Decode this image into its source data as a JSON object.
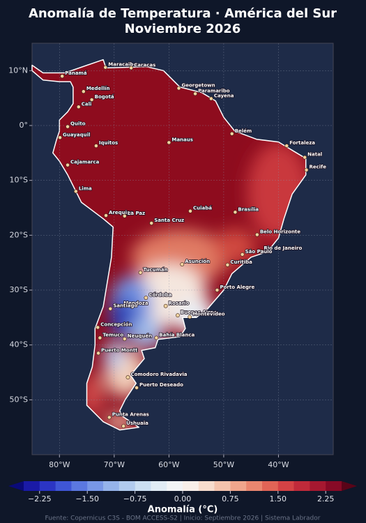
{
  "title_lines": [
    "Anomalía de Temperatura · América del Sur",
    "Noviembre 2026"
  ],
  "map": {
    "xlim": [
      -85,
      -30
    ],
    "ylim": [
      -60,
      15
    ],
    "xticks": [
      {
        "value": -80,
        "label": "80°W"
      },
      {
        "value": -70,
        "label": "70°W"
      },
      {
        "value": -60,
        "label": "60°W"
      },
      {
        "value": -50,
        "label": "50°W"
      },
      {
        "value": -40,
        "label": "40°W"
      }
    ],
    "yticks": [
      {
        "value": 10,
        "label": "10°N"
      },
      {
        "value": 0,
        "label": "0°"
      },
      {
        "value": -10,
        "label": "10°S"
      },
      {
        "value": -20,
        "label": "20°S"
      },
      {
        "value": -30,
        "label": "30°S"
      },
      {
        "value": -40,
        "label": "40°S"
      },
      {
        "value": -50,
        "label": "50°S"
      }
    ],
    "grid": true,
    "cities": [
      {
        "name": "Panamá",
        "lon": -79.5,
        "lat": 9
      },
      {
        "name": "Maracaibo",
        "lon": -71.6,
        "lat": 10.6
      },
      {
        "name": "Caracas",
        "lon": -66.9,
        "lat": 10.5
      },
      {
        "name": "Medellín",
        "lon": -75.6,
        "lat": 6.2
      },
      {
        "name": "Bogotá",
        "lon": -74.1,
        "lat": 4.7
      },
      {
        "name": "Cali",
        "lon": -76.5,
        "lat": 3.4
      },
      {
        "name": "Georgetown",
        "lon": -58.2,
        "lat": 6.8
      },
      {
        "name": "Paramaribo",
        "lon": -55.2,
        "lat": 5.8
      },
      {
        "name": "Cayena",
        "lon": -52.3,
        "lat": 4.9
      },
      {
        "name": "Quito",
        "lon": -78.5,
        "lat": -0.2
      },
      {
        "name": "Guayaquil",
        "lon": -79.9,
        "lat": -2.2
      },
      {
        "name": "Iquitos",
        "lon": -73.3,
        "lat": -3.7
      },
      {
        "name": "Manaus",
        "lon": -60,
        "lat": -3.1
      },
      {
        "name": "Belém",
        "lon": -48.5,
        "lat": -1.5
      },
      {
        "name": "Fortaleza",
        "lon": -38.5,
        "lat": -3.7
      },
      {
        "name": "Natal",
        "lon": -35.2,
        "lat": -5.8
      },
      {
        "name": "Recife",
        "lon": -34.9,
        "lat": -8.1
      },
      {
        "name": "Cajamarca",
        "lon": -78.5,
        "lat": -7.2
      },
      {
        "name": "Lima",
        "lon": -77,
        "lat": -12
      },
      {
        "name": "Cuiabá",
        "lon": -56.1,
        "lat": -15.6
      },
      {
        "name": "Brasília",
        "lon": -47.9,
        "lat": -15.8
      },
      {
        "name": "Arequipa",
        "lon": -71.5,
        "lat": -16.4
      },
      {
        "name": "La Paz",
        "lon": -68.1,
        "lat": -16.5
      },
      {
        "name": "Santa Cruz",
        "lon": -63.2,
        "lat": -17.8
      },
      {
        "name": "Belo Horizonte",
        "lon": -43.9,
        "lat": -19.9
      },
      {
        "name": "Rio de Janeiro",
        "lon": -43.2,
        "lat": -22.9
      },
      {
        "name": "São Paulo",
        "lon": -46.6,
        "lat": -23.5
      },
      {
        "name": "Curitiba",
        "lon": -49.3,
        "lat": -25.4
      },
      {
        "name": "Asunción",
        "lon": -57.6,
        "lat": -25.3
      },
      {
        "name": "Tucumán",
        "lon": -65.2,
        "lat": -26.8
      },
      {
        "name": "Porto Alegre",
        "lon": -51.2,
        "lat": -30
      },
      {
        "name": "Córdoba",
        "lon": -64.2,
        "lat": -31.4
      },
      {
        "name": "Mendoza",
        "lon": -68.8,
        "lat": -32.9
      },
      {
        "name": "Santiago",
        "lon": -70.7,
        "lat": -33.4
      },
      {
        "name": "Rosario",
        "lon": -60.6,
        "lat": -32.9
      },
      {
        "name": "Buenos Aires",
        "lon": -58.4,
        "lat": -34.6
      },
      {
        "name": "Montevideo",
        "lon": -56.2,
        "lat": -34.9
      },
      {
        "name": "Concepción",
        "lon": -73,
        "lat": -36.8
      },
      {
        "name": "Temuco",
        "lon": -72.6,
        "lat": -38.7
      },
      {
        "name": "Neuquén",
        "lon": -68.1,
        "lat": -38.9
      },
      {
        "name": "Bahía Blanca",
        "lon": -62.3,
        "lat": -38.7
      },
      {
        "name": "Puerto Montt",
        "lon": -72.9,
        "lat": -41.5
      },
      {
        "name": "Comodoro Rivadavia",
        "lon": -67.5,
        "lat": -45.9
      },
      {
        "name": "Puerto Deseado",
        "lon": -65.9,
        "lat": -47.8
      },
      {
        "name": "Punta Arenas",
        "lon": -70.9,
        "lat": -53.2
      },
      {
        "name": "Ushuaia",
        "lon": -68.3,
        "lat": -54.8
      }
    ]
  },
  "colorbar": {
    "label": "Anomalía (°C)",
    "lim": [
      -2.5,
      2.5
    ],
    "ticks": [
      {
        "value": -2.25,
        "label": "−2.25"
      },
      {
        "value": -1.5,
        "label": "−1.50"
      },
      {
        "value": -0.75,
        "label": "−0.75"
      },
      {
        "value": 0,
        "label": "0.00"
      },
      {
        "value": 0.75,
        "label": "0.75"
      },
      {
        "value": 1.5,
        "label": "1.50"
      },
      {
        "value": 2.25,
        "label": "2.25"
      }
    ],
    "colors": [
      "#1a1aa6",
      "#2b35c4",
      "#3f56d6",
      "#5b78e0",
      "#7897e6",
      "#95b3ea",
      "#b1cbee",
      "#cbdff2",
      "#e1ecf5",
      "#f2f4f6",
      "#f8efe9",
      "#f7dccd",
      "#f4c3ad",
      "#f0a58c",
      "#ea866f",
      "#e16456",
      "#d44245",
      "#c02a3a",
      "#a61830",
      "#870a26"
    ]
  },
  "source": "Fuente: Copernicus C3S - BOM ACCESS-S2 | Inicio: Septiembre 2026 | Sistema Labrador"
}
